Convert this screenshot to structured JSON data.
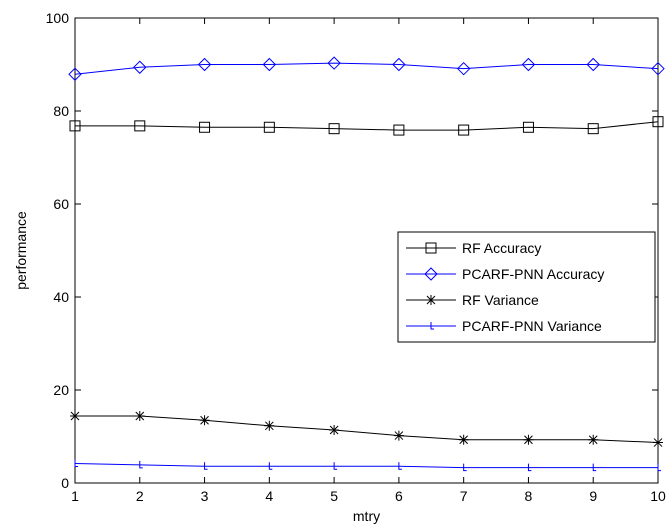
{
  "chart_data": {
    "type": "line",
    "title": "",
    "xlabel": "mtry",
    "ylabel": "performance",
    "x": [
      1,
      2,
      3,
      4,
      5,
      6,
      7,
      8,
      9,
      10
    ],
    "xlim": [
      1,
      10
    ],
    "ylim": [
      0,
      100
    ],
    "xticks": [
      1,
      2,
      3,
      4,
      5,
      6,
      7,
      8,
      9,
      10
    ],
    "yticks": [
      0,
      20,
      40,
      60,
      80,
      100
    ],
    "grid": false,
    "legend_position": "center-right",
    "series": [
      {
        "name": "RF Accuracy",
        "marker": "square",
        "color": "#000000",
        "values": [
          76.8,
          76.8,
          76.5,
          76.5,
          76.2,
          75.9,
          75.9,
          76.5,
          76.2,
          77.7
        ]
      },
      {
        "name": "PCARF-PNN Accuracy",
        "marker": "diamond",
        "color": "#0000ff",
        "values": [
          87.9,
          89.4,
          90.0,
          90.0,
          90.3,
          90.0,
          89.1,
          90.0,
          90.0,
          89.1
        ]
      },
      {
        "name": "RF Variance",
        "marker": "star",
        "color": "#000000",
        "values": [
          14.4,
          14.4,
          13.5,
          12.3,
          11.4,
          10.2,
          9.3,
          9.3,
          9.3,
          8.7
        ]
      },
      {
        "name": "PCARF-PNN Variance",
        "marker": "tick",
        "color": "#0000ff",
        "values": [
          4.2,
          3.9,
          3.6,
          3.6,
          3.6,
          3.6,
          3.3,
          3.3,
          3.3,
          3.3
        ]
      }
    ]
  }
}
